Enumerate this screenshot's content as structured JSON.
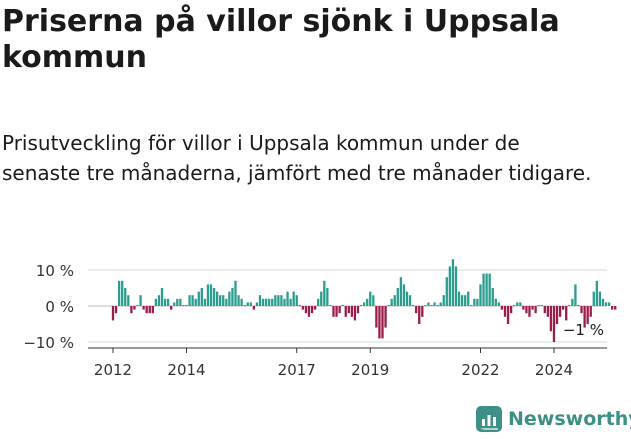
{
  "title": "Priserna på villor sjönk i Uppsala kommun",
  "subtitle": "Prisutveckling för villor i Uppsala kommun under de senaste tre månaderna, jämfört med tre månader tidigare.",
  "brand": "Newsworthy",
  "colors": {
    "positive": "#2a9d8f",
    "negative": "#9b1b4b",
    "grid": "#d8d8d8",
    "text": "#333333",
    "brand": "#3e8f86"
  },
  "chart_data": {
    "type": "bar",
    "title": "Priserna på villor sjönk i Uppsala kommun",
    "xlabel": "",
    "ylabel": "",
    "ylim": [
      -11,
      13
    ],
    "yticks": [
      10,
      0,
      -10
    ],
    "ytick_labels": [
      "10 %",
      "0 %",
      "−10 %"
    ],
    "xticks": [
      2012,
      2014,
      2017,
      2019,
      2022,
      2024
    ],
    "xtick_labels": [
      "2012",
      "2014",
      "2017",
      "2019",
      "2022",
      "2024"
    ],
    "x_start": 2012.0,
    "x_step": 0.08333,
    "last_label": "−1 %",
    "values": [
      -4,
      -2,
      7,
      7,
      5,
      3,
      -2,
      -1,
      0,
      3,
      -1,
      -2,
      -2,
      -2,
      2,
      3,
      5,
      2,
      2,
      -1,
      1,
      2,
      2,
      0,
      0,
      3,
      3,
      2,
      4,
      5,
      2,
      6,
      6,
      5,
      4,
      3,
      3,
      2,
      4,
      5,
      7,
      3,
      2,
      0,
      1,
      1,
      -1,
      1,
      3,
      2,
      2,
      2,
      2,
      3,
      3,
      3,
      2,
      4,
      2,
      4,
      3,
      0,
      -1,
      -2,
      -3,
      -2,
      -1,
      2,
      4,
      7,
      5,
      0,
      -3,
      -3,
      -2,
      0,
      -3,
      -2,
      -3,
      -4,
      -2,
      0,
      1,
      2,
      4,
      3,
      -6,
      -9,
      -9,
      -6,
      0,
      2,
      3,
      5,
      8,
      6,
      4,
      3,
      0,
      -2,
      -5,
      -3,
      0,
      1,
      0,
      1,
      0,
      1,
      3,
      8,
      11,
      13,
      11,
      4,
      3,
      3,
      4,
      0,
      2,
      2,
      6,
      9,
      9,
      9,
      5,
      2,
      1,
      -1,
      -3,
      -5,
      -2,
      0,
      1,
      1,
      -1,
      -2,
      -3,
      -1,
      -2,
      0,
      0,
      -2,
      -3,
      -7,
      -10,
      -5,
      -3,
      -1,
      -4,
      0,
      2,
      6,
      0,
      -2,
      -6,
      -5,
      -3,
      4,
      7,
      4,
      2,
      1,
      1,
      -1,
      -1
    ]
  }
}
